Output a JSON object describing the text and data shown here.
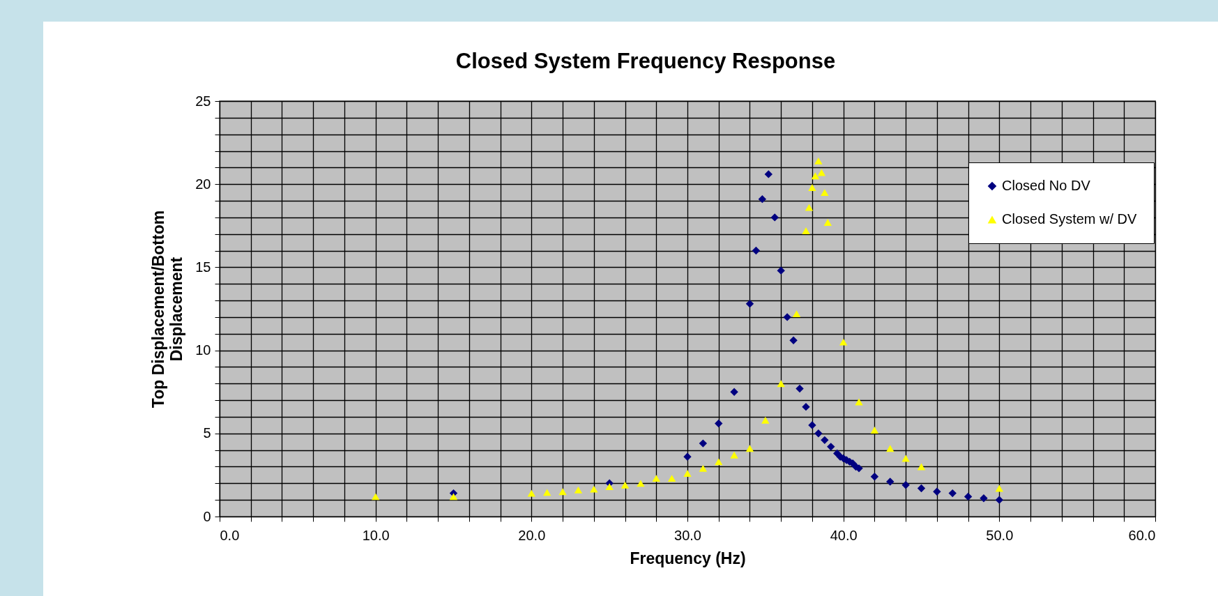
{
  "chart_data": {
    "type": "scatter",
    "title": "Closed System Frequency Response",
    "xlabel": "Frequency (Hz)",
    "ylabel": "Top Displacement/Bottom Displacement",
    "xlim": [
      0,
      60
    ],
    "ylim": [
      0,
      25
    ],
    "xticks": [
      {
        "value": 0,
        "label": "0.0"
      },
      {
        "value": 2,
        "label": null
      },
      {
        "value": 4,
        "label": null
      },
      {
        "value": 6,
        "label": null
      },
      {
        "value": 8,
        "label": null
      },
      {
        "value": 10,
        "label": "10.0"
      },
      {
        "value": 12,
        "label": null
      },
      {
        "value": 14,
        "label": null
      },
      {
        "value": 16,
        "label": null
      },
      {
        "value": 18,
        "label": null
      },
      {
        "value": 20,
        "label": "20.0"
      },
      {
        "value": 22,
        "label": null
      },
      {
        "value": 24,
        "label": null
      },
      {
        "value": 26,
        "label": null
      },
      {
        "value": 28,
        "label": null
      },
      {
        "value": 30,
        "label": "30.0"
      },
      {
        "value": 32,
        "label": null
      },
      {
        "value": 34,
        "label": null
      },
      {
        "value": 36,
        "label": null
      },
      {
        "value": 38,
        "label": null
      },
      {
        "value": 40,
        "label": "40.0"
      },
      {
        "value": 42,
        "label": null
      },
      {
        "value": 44,
        "label": null
      },
      {
        "value": 46,
        "label": null
      },
      {
        "value": 48,
        "label": null
      },
      {
        "value": 50,
        "label": "50.0"
      },
      {
        "value": 52,
        "label": null
      },
      {
        "value": 54,
        "label": null
      },
      {
        "value": 56,
        "label": null
      },
      {
        "value": 58,
        "label": null
      },
      {
        "value": 60,
        "label": "60.0"
      }
    ],
    "yticks": [
      0,
      {
        "value": 1,
        "label": null
      },
      {
        "value": 2,
        "label": null
      },
      {
        "value": 3,
        "label": null
      },
      {
        "value": 4,
        "label": null
      },
      5,
      {
        "value": 6,
        "label": null
      },
      {
        "value": 7,
        "label": null
      },
      {
        "value": 8,
        "label": null
      },
      {
        "value": 9,
        "label": null
      },
      10,
      {
        "value": 11,
        "label": null
      },
      {
        "value": 12,
        "label": null
      },
      {
        "value": 13,
        "label": null
      },
      {
        "value": 14,
        "label": null
      },
      15,
      {
        "value": 16,
        "label": null
      },
      {
        "value": 17,
        "label": null
      },
      {
        "value": 18,
        "label": null
      },
      {
        "value": 19,
        "label": null
      },
      20,
      {
        "value": 21,
        "label": null
      },
      {
        "value": 22,
        "label": null
      },
      {
        "value": 23,
        "label": null
      },
      {
        "value": 24,
        "label": null
      },
      25
    ],
    "grid": true,
    "legend": "top right",
    "series": [
      {
        "name": "Closed No DV",
        "color": "#000080",
        "marker": "diamond",
        "x": [
          15,
          25,
          30,
          31,
          32,
          33,
          34,
          34.4,
          34.8,
          35.2,
          35.6,
          36,
          36.4,
          36.8,
          37.2,
          37.6,
          38,
          38.4,
          38.8,
          39.2,
          39.6,
          39.8,
          40,
          40.2,
          40.4,
          40.6,
          40.8,
          41,
          42,
          43,
          44,
          45,
          46,
          47,
          48,
          49,
          50
        ],
        "values": [
          1.4,
          2.0,
          3.6,
          4.4,
          5.6,
          7.5,
          12.8,
          16.0,
          19.1,
          20.6,
          18.0,
          14.8,
          12.0,
          10.6,
          7.7,
          6.6,
          5.5,
          5.0,
          4.6,
          4.2,
          3.8,
          3.6,
          3.5,
          3.4,
          3.3,
          3.2,
          3.0,
          2.9,
          2.4,
          2.1,
          1.9,
          1.7,
          1.5,
          1.4,
          1.2,
          1.1,
          1.0
        ]
      },
      {
        "name": "Closed System w/ DV",
        "color": "#ffff00",
        "marker": "triangle",
        "x": [
          10,
          15,
          20,
          21,
          22,
          23,
          24,
          25,
          26,
          27,
          28,
          29,
          30,
          31,
          32,
          33,
          34,
          35,
          36,
          37,
          37.6,
          37.8,
          38,
          38.2,
          38.4,
          38.6,
          38.8,
          39,
          40,
          41,
          42,
          43,
          44,
          45,
          50
        ],
        "values": [
          1.2,
          1.2,
          1.4,
          1.45,
          1.5,
          1.6,
          1.65,
          1.8,
          1.9,
          2.0,
          2.3,
          2.3,
          2.6,
          2.9,
          3.3,
          3.7,
          4.1,
          5.8,
          8.0,
          12.2,
          17.2,
          18.6,
          19.8,
          20.5,
          21.4,
          20.7,
          19.5,
          17.7,
          10.5,
          6.9,
          5.2,
          4.1,
          3.5,
          3.0,
          1.7
        ]
      }
    ]
  }
}
